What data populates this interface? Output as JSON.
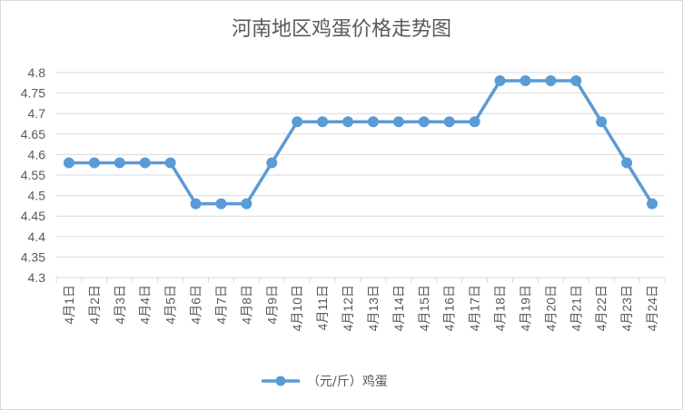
{
  "chart_data": {
    "type": "line",
    "title": "河南地区鸡蛋价格走势图",
    "categories": [
      "4月1日",
      "4月2日",
      "4月3日",
      "4月4日",
      "4月5日",
      "4月6日",
      "4月7日",
      "4月8日",
      "4月9日",
      "4月10日",
      "4月11日",
      "4月12日",
      "4月13日",
      "4月14日",
      "4月15日",
      "4月16日",
      "4月17日",
      "4月18日",
      "4月19日",
      "4月20日",
      "4月21日",
      "4月22日",
      "4月23日",
      "4月24日"
    ],
    "series": [
      {
        "name": "（元/斤）鸡蛋",
        "color": "#5b9bd5",
        "values": [
          4.58,
          4.58,
          4.58,
          4.58,
          4.58,
          4.48,
          4.48,
          4.48,
          4.58,
          4.68,
          4.68,
          4.68,
          4.68,
          4.68,
          4.68,
          4.68,
          4.68,
          4.78,
          4.78,
          4.78,
          4.78,
          4.68,
          4.58,
          4.48
        ]
      }
    ],
    "yticks": [
      "4.3",
      "4.35",
      "4.4",
      "4.45",
      "4.5",
      "4.55",
      "4.6",
      "4.65",
      "4.7",
      "4.75",
      "4.8"
    ],
    "ylim": [
      4.3,
      4.8
    ],
    "grid": true,
    "legend": "bottom",
    "xlabel": "",
    "ylabel": ""
  }
}
